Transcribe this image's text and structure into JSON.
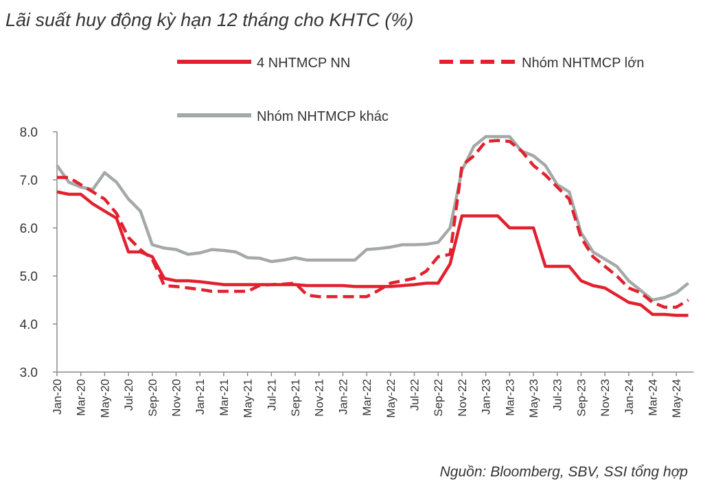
{
  "chart_data": {
    "type": "line",
    "title": "Lãi suất huy động kỳ hạn 12 tháng cho KHTC (%)",
    "source": "Nguồn: Bloomberg, SBV, SSI tổng hợp",
    "xlabel": "",
    "ylabel": "",
    "ylim": [
      3.0,
      8.0
    ],
    "yticks": [
      "3.0",
      "4.0",
      "5.0",
      "6.0",
      "7.0",
      "8.0"
    ],
    "xticks": [
      "Jan-20",
      "Mar-20",
      "May-20",
      "Jul-20",
      "Sep-20",
      "Nov-20",
      "Jan-21",
      "Mar-21",
      "May-21",
      "Jul-21",
      "Sep-21",
      "Nov-21",
      "Jan-22",
      "Mar-22",
      "May-22",
      "Jul-22",
      "Sep-22",
      "Nov-22",
      "Jan-23",
      "Mar-23",
      "May-23",
      "Jul-23",
      "Sep-23",
      "Nov-23",
      "Jan-24",
      "Mar-24",
      "May-24"
    ],
    "x_note": "monthly, Jan-20 to Jun-24",
    "grid": false,
    "legend_placement": "top",
    "series": [
      {
        "name": "4 NHTMCP NN",
        "color": "#e2202e",
        "style": "solid",
        "values": [
          6.75,
          6.7,
          6.7,
          6.5,
          6.35,
          6.2,
          5.5,
          5.5,
          5.4,
          4.95,
          4.9,
          4.9,
          4.88,
          4.85,
          4.82,
          4.82,
          4.82,
          4.82,
          4.82,
          4.82,
          4.82,
          4.8,
          4.8,
          4.8,
          4.8,
          4.78,
          4.78,
          4.78,
          4.78,
          4.8,
          4.82,
          4.85,
          4.85,
          5.25,
          6.25,
          6.25,
          6.25,
          6.25,
          6.0,
          6.0,
          6.0,
          5.2,
          5.2,
          5.2,
          4.9,
          4.8,
          4.75,
          4.6,
          4.45,
          4.4,
          4.2,
          4.2,
          4.18,
          4.18
        ]
      },
      {
        "name": "Nhóm NHTMCP lớn",
        "color": "#e2202e",
        "style": "dashed",
        "values": [
          7.05,
          7.05,
          6.9,
          6.75,
          6.6,
          6.3,
          5.8,
          5.55,
          5.35,
          4.8,
          4.78,
          4.75,
          4.72,
          4.68,
          4.68,
          4.68,
          4.68,
          4.8,
          4.82,
          4.83,
          4.85,
          4.6,
          4.57,
          4.57,
          4.57,
          4.57,
          4.57,
          4.7,
          4.85,
          4.9,
          4.95,
          5.1,
          5.4,
          5.45,
          7.3,
          7.5,
          7.8,
          7.82,
          7.8,
          7.6,
          7.3,
          7.1,
          6.85,
          6.6,
          5.8,
          5.4,
          5.2,
          5.0,
          4.75,
          4.65,
          4.45,
          4.35,
          4.35,
          4.5
        ]
      },
      {
        "name": "Nhóm NHTMCP khác",
        "color": "#a4a9a8",
        "style": "solid",
        "values": [
          7.3,
          6.95,
          6.85,
          6.8,
          7.15,
          6.95,
          6.6,
          6.35,
          5.65,
          5.58,
          5.55,
          5.45,
          5.48,
          5.55,
          5.53,
          5.5,
          5.38,
          5.37,
          5.3,
          5.33,
          5.38,
          5.33,
          5.33,
          5.33,
          5.33,
          5.33,
          5.55,
          5.57,
          5.6,
          5.65,
          5.65,
          5.66,
          5.7,
          6.0,
          7.2,
          7.7,
          7.9,
          7.9,
          7.9,
          7.6,
          7.5,
          7.3,
          6.9,
          6.75,
          5.9,
          5.5,
          5.35,
          5.2,
          4.9,
          4.7,
          4.5,
          4.55,
          4.65,
          4.85
        ]
      }
    ]
  }
}
